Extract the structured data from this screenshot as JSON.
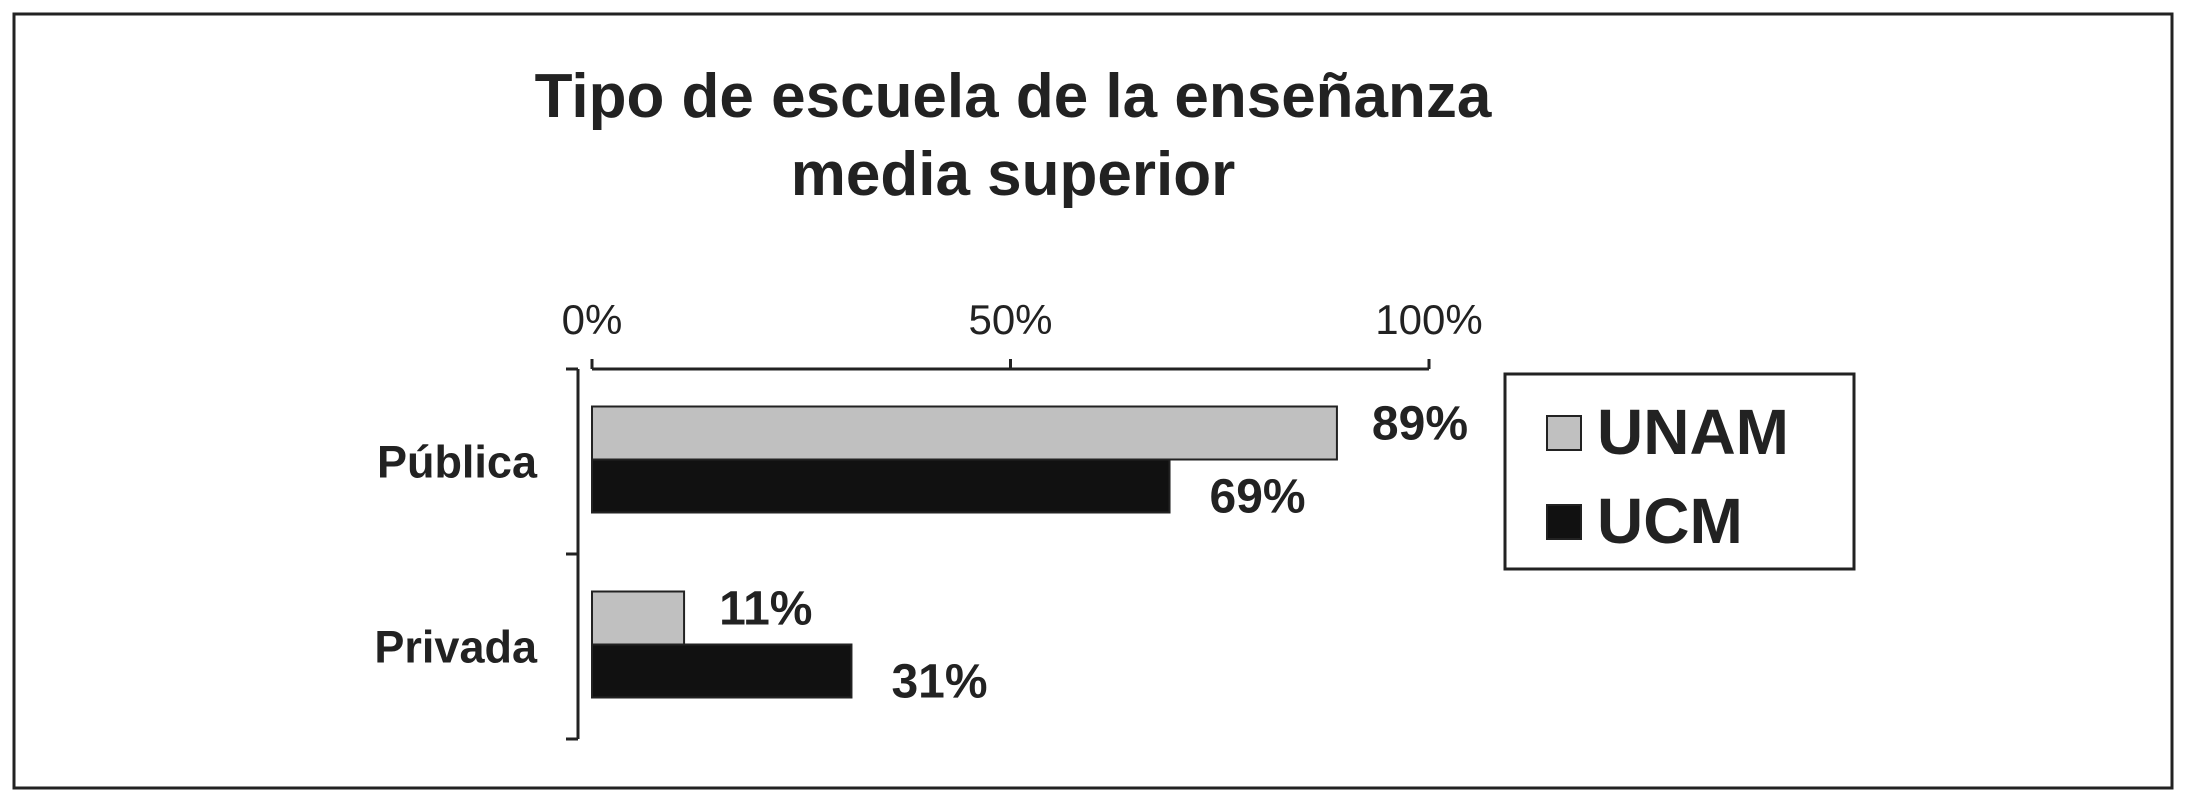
{
  "chart_data": {
    "type": "bar",
    "orientation": "horizontal",
    "title": "Tipo de escuela de la enseñanza media superior",
    "categories": [
      "Pública",
      "Privada"
    ],
    "series": [
      {
        "name": "UNAM",
        "color": "#c0c0c0",
        "values": [
          89,
          11
        ],
        "value_labels": [
          "89%",
          "11%"
        ]
      },
      {
        "name": "UCM",
        "color": "#111111",
        "values": [
          69,
          31
        ],
        "value_labels": [
          "69%",
          "31%"
        ]
      }
    ],
    "xlim": [
      0,
      100
    ],
    "xticks": [
      {
        "value": 0,
        "label": "0%"
      },
      {
        "value": 50,
        "label": "50%"
      },
      {
        "value": 100,
        "label": "100%"
      }
    ],
    "legend": "right"
  }
}
